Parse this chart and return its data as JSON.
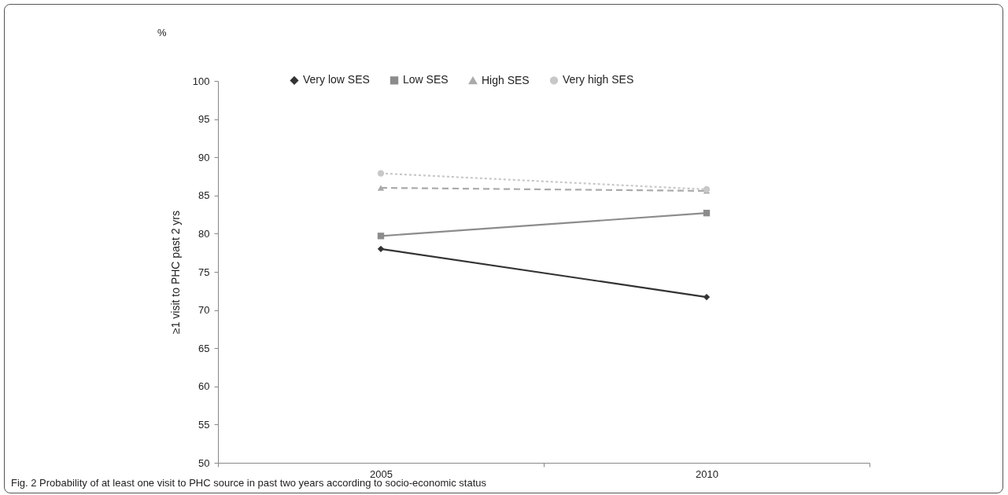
{
  "chart_data": {
    "type": "line",
    "ylabel": "≥1 visit to PHC past 2 yrs",
    "categories": [
      "2005",
      "2010"
    ],
    "ylim": [
      50,
      100
    ],
    "yticks": [
      50,
      55,
      60,
      65,
      70,
      75,
      80,
      85,
      90,
      95,
      100
    ],
    "grid": false,
    "legend": "top",
    "series": [
      {
        "name": "Very low SES",
        "color": "#333333",
        "marker": "diamond",
        "line_style": "solid",
        "values": [
          78,
          71.7
        ]
      },
      {
        "name": "Low SES",
        "color": "#8c8c8c",
        "marker": "square",
        "line_style": "solid",
        "values": [
          79.7,
          82.7
        ]
      },
      {
        "name": "High SES",
        "color": "#aaaaaa",
        "marker": "triangle",
        "line_style": "dashed",
        "values": [
          86,
          85.6
        ]
      },
      {
        "name": "Very high SES",
        "color": "#c8c8c8",
        "marker": "circle",
        "line_style": "dotted",
        "values": [
          87.9,
          85.8
        ]
      }
    ],
    "annotations": [
      "%",
      "Fig. 2 Probability of at least one visit to PHC source in past two years according to socio-economic status"
    ]
  }
}
